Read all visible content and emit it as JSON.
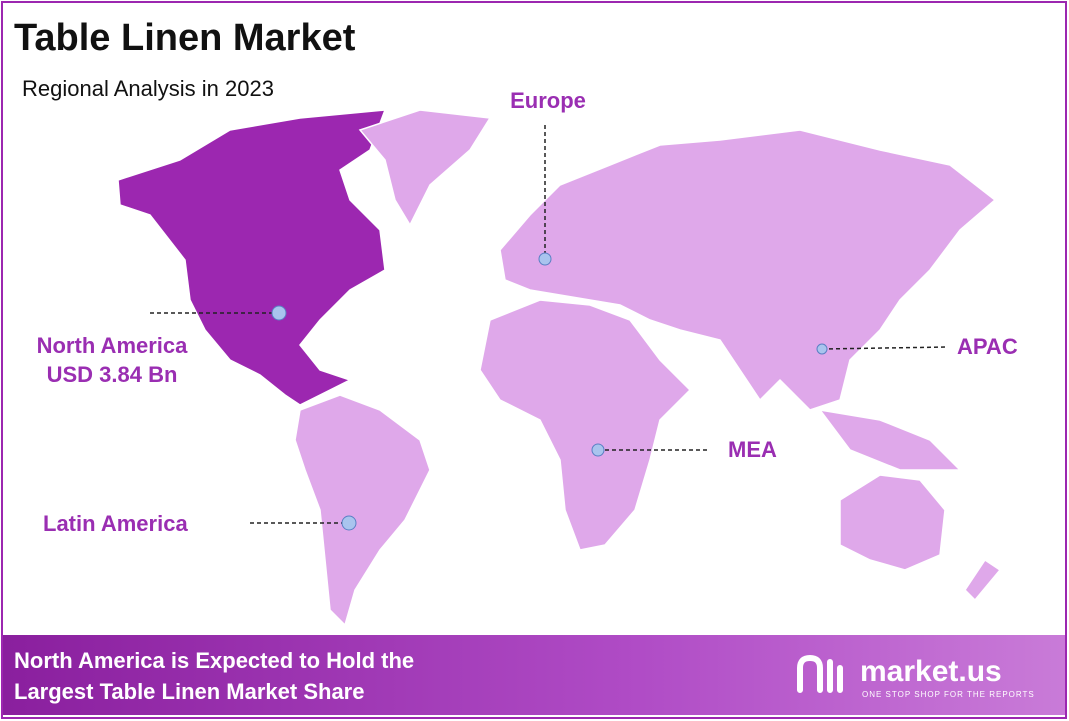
{
  "header": {
    "title": "Table Linen Market",
    "subtitle": "Regional Analysis in 2023"
  },
  "regions": [
    {
      "label": "North America",
      "value": "USD 3.84 Bn"
    },
    {
      "label": "Europe"
    },
    {
      "label": "APAC"
    },
    {
      "label": "MEA"
    },
    {
      "label": "Latin America"
    }
  ],
  "footer": {
    "lines": [
      "North America is Expected to Hold the",
      "Largest Table Linen Market Share"
    ]
  },
  "logo": {
    "name": "market.us",
    "tagline": "ONE STOP SHOP FOR THE REPORTS"
  }
}
